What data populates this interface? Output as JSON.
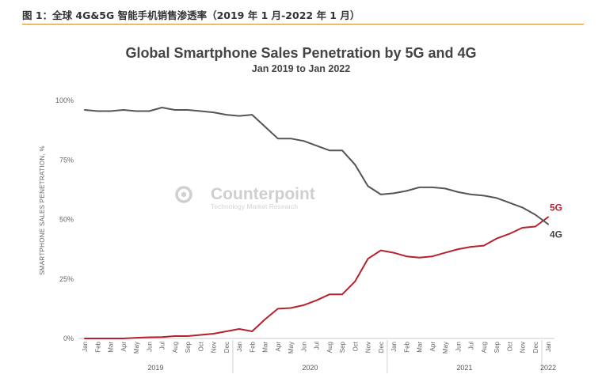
{
  "caption": "图 1：全球 4G&5G 智能手机销售渗透率（2019 年 1 月-2022 年 1 月）",
  "watermark": {
    "name": "Counterpoint",
    "tagline": "Technology Market Research"
  },
  "chart_data": {
    "type": "line",
    "title": "Global Smartphone Sales Penetration by 5G and 4G",
    "subtitle": "Jan 2019 to Jan 2022",
    "ylabel": "SMARTPHONE SALES PENETRATION, %",
    "xlabel": "",
    "ylim": [
      0,
      100
    ],
    "yticks": [
      0,
      25,
      50,
      75,
      100
    ],
    "ytick_labels": [
      "0%",
      "25%",
      "50%",
      "75%",
      "100%"
    ],
    "grid": false,
    "categories": [
      "Jan",
      "Feb",
      "Mar",
      "Apr",
      "May",
      "Jun",
      "Jul",
      "Aug",
      "Sep",
      "Oct",
      "Nov",
      "Dec",
      "Jan",
      "Feb",
      "Mar",
      "Apr",
      "May",
      "Jun",
      "Jul",
      "Aug",
      "Sep",
      "Oct",
      "Nov",
      "Dec",
      "Jan",
      "Feb",
      "Mar",
      "Apr",
      "May",
      "Jun",
      "Jul",
      "Aug",
      "Sep",
      "Oct",
      "Nov",
      "Dec",
      "Jan"
    ],
    "year_groups": [
      {
        "label": "2019",
        "count": 12
      },
      {
        "label": "2020",
        "count": 12
      },
      {
        "label": "2021",
        "count": 12
      },
      {
        "label": "2022",
        "count": 1
      }
    ],
    "series": [
      {
        "name": "5G",
        "color": "#b5222e",
        "values": [
          0,
          0,
          0,
          0,
          0.3,
          0.5,
          0.6,
          1,
          1,
          1.5,
          2,
          3,
          4,
          3,
          8,
          12.5,
          12.8,
          14,
          16,
          18.5,
          18.5,
          24,
          33.5,
          37,
          36,
          34.5,
          34,
          34.5,
          36,
          37.5,
          38.5,
          39,
          42,
          44,
          46.5,
          47,
          51
        ]
      },
      {
        "name": "4G",
        "color": "#555555",
        "values": [
          96,
          95.5,
          95.5,
          96,
          95.5,
          95.5,
          97,
          96,
          96,
          95.5,
          95,
          94,
          93.5,
          94,
          89,
          84,
          84,
          83,
          81,
          79,
          79,
          73,
          64,
          60.5,
          61,
          62,
          63.5,
          63.5,
          63,
          61.5,
          60.5,
          60,
          59,
          57,
          55,
          52,
          48
        ]
      }
    ]
  }
}
